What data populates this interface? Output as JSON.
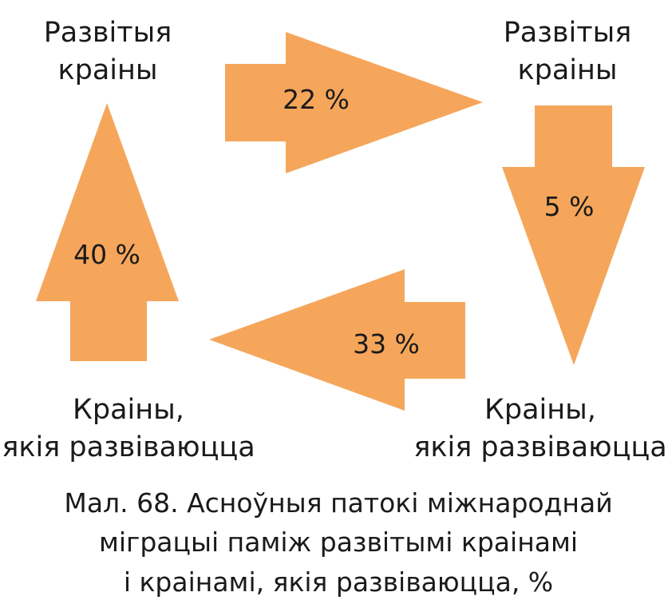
{
  "colors": {
    "arrow_fill": "#F5A65B",
    "text": "#1a1a1a"
  },
  "nodes": {
    "top_left": [
      "Развітыя",
      "краіны"
    ],
    "top_right": [
      "Развітыя",
      "краіны"
    ],
    "bottom_left": [
      "Краіны,",
      "якія развіваюцца"
    ],
    "bottom_right": [
      "Краіны,",
      "якія развіваюцца"
    ]
  },
  "flows": {
    "right": {
      "from": "top_left",
      "to": "top_right",
      "label": "22 %"
    },
    "down": {
      "from": "top_right",
      "to": "bottom_right",
      "label": "5 %"
    },
    "left": {
      "from": "bottom_right",
      "to": "bottom_left",
      "label": "33 %"
    },
    "up": {
      "from": "bottom_left",
      "to": "top_left",
      "label": "40 %"
    }
  },
  "caption": [
    "Мал. 68. Асноўныя патокі міжнароднай",
    "міграцыі паміж развітымі краінамі",
    "і краінамі, якія развіваюцца, %"
  ]
}
